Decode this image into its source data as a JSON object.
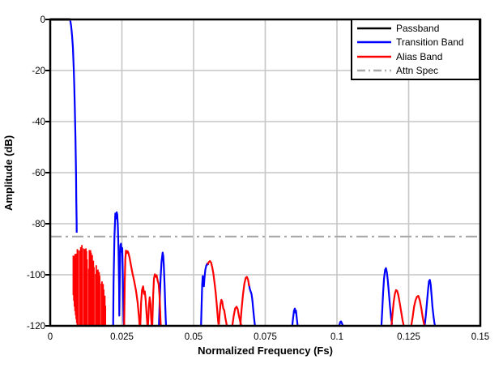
{
  "colors": {
    "background": "#ffffff",
    "grid": "#c6c6c6",
    "axis": "#000000",
    "passband": "#000000",
    "transition": "#0000ff",
    "alias": "#ff0000",
    "attn": "#a8a8a8"
  },
  "legend": {
    "items": [
      {
        "label": "Passband",
        "color": "#000000",
        "dash": "solid"
      },
      {
        "label": "Transition Band",
        "color": "#0000ff",
        "dash": "solid"
      },
      {
        "label": "Alias Band",
        "color": "#ff0000",
        "dash": "solid"
      },
      {
        "label": "Attn Spec",
        "color": "#a8a8a8",
        "dash": "dashdot"
      }
    ]
  },
  "chart_data": {
    "type": "line",
    "title": "",
    "xlabel": "Normalized Frequency (Fs)",
    "ylabel": "Amplitude (dB)",
    "xlim": [
      0,
      0.15
    ],
    "ylim": [
      -120,
      0
    ],
    "grid": true,
    "legend_position": "top-right",
    "attn_spec_db": -85,
    "xticks": [
      0,
      0.025,
      0.05,
      0.075,
      0.1,
      0.125,
      0.15
    ],
    "xtick_labels": [
      "0",
      "0.025",
      "0.05",
      "0.075",
      "0.1",
      "0.125",
      "0.15"
    ],
    "yticks": [
      0,
      -20,
      -40,
      -60,
      -80,
      -100,
      -120
    ],
    "ytick_labels": [
      "0",
      "-20",
      "-40",
      "-60",
      "-80",
      "-100",
      "-120"
    ],
    "series": [
      {
        "name": "attn-spec",
        "color": "#a8a8a8",
        "width": 2.2,
        "dash": "14 5 3 5",
        "points": [
          [
            0,
            -85
          ],
          [
            0.15,
            -85
          ]
        ]
      },
      {
        "name": "passband",
        "color": "#000000",
        "width": 3,
        "points": [
          [
            0,
            0
          ],
          [
            0.007,
            0
          ]
        ]
      },
      {
        "name": "transition-band",
        "color": "#0000ff",
        "width": 2.2,
        "points": [
          [
            0.007,
            -0.5
          ],
          [
            0.0073,
            -2.5
          ],
          [
            0.0076,
            -6
          ],
          [
            0.0079,
            -11
          ],
          [
            0.0082,
            -19
          ],
          [
            0.0084,
            -26
          ],
          [
            0.0086,
            -35
          ],
          [
            0.0088,
            -47
          ],
          [
            0.009,
            -61
          ],
          [
            0.0091,
            -71
          ],
          [
            0.0092,
            -79
          ],
          [
            0.00925,
            -83.5
          ]
        ]
      },
      {
        "name": "alias-blue-spike-1",
        "color": "#0000ff",
        "width": 2.2,
        "points": [
          [
            0.02195,
            -120
          ],
          [
            0.0221,
            -103
          ],
          [
            0.0224,
            -85
          ],
          [
            0.0227,
            -76
          ],
          [
            0.0229,
            -78
          ],
          [
            0.0232,
            -75.5
          ],
          [
            0.0234,
            -76.5
          ],
          [
            0.0236,
            -81
          ],
          [
            0.0238,
            -90
          ],
          [
            0.024,
            -104
          ],
          [
            0.0241,
            -116
          ],
          [
            0.0243,
            -98
          ],
          [
            0.0245,
            -88.5
          ],
          [
            0.0247,
            -87.8
          ],
          [
            0.0249,
            -91
          ],
          [
            0.0251,
            -89.5
          ],
          [
            0.0252,
            -93
          ],
          [
            0.0254,
            -105
          ],
          [
            0.0256,
            -118
          ],
          [
            0.0257,
            -120
          ]
        ]
      },
      {
        "name": "alias-blue-spike-2",
        "color": "#0000ff",
        "width": 2.2,
        "points": [
          [
            0.0379,
            -120
          ],
          [
            0.0382,
            -110
          ],
          [
            0.0385,
            -101
          ],
          [
            0.0388,
            -95
          ],
          [
            0.0392,
            -91.3
          ],
          [
            0.0394,
            -92.5
          ],
          [
            0.0396,
            -96
          ],
          [
            0.0399,
            -104
          ],
          [
            0.0401,
            -112
          ],
          [
            0.0403,
            -118
          ],
          [
            0.0404,
            -120
          ]
        ]
      },
      {
        "name": "alias-blue-spike-3",
        "color": "#0000ff",
        "width": 2.2,
        "points": [
          [
            0.0526,
            -120
          ],
          [
            0.0528,
            -112
          ],
          [
            0.053,
            -104
          ],
          [
            0.0532,
            -100.5
          ],
          [
            0.0534,
            -103
          ],
          [
            0.0536,
            -104.5
          ],
          [
            0.0538,
            -101
          ],
          [
            0.0541,
            -98
          ],
          [
            0.0544,
            -96.5
          ],
          [
            0.0548,
            -95.6
          ],
          [
            0.0552,
            -96.2
          ]
        ]
      },
      {
        "name": "alias-blue-edge-1",
        "color": "#0000ff",
        "width": 2.2,
        "points": [
          [
            0.0692,
            -103.5
          ],
          [
            0.0696,
            -105.5
          ],
          [
            0.0699,
            -106.5
          ],
          [
            0.0702,
            -107.5
          ],
          [
            0.0705,
            -110
          ],
          [
            0.0708,
            -113.5
          ],
          [
            0.0711,
            -117
          ],
          [
            0.0714,
            -120
          ]
        ]
      },
      {
        "name": "alias-blue-spike-4",
        "color": "#0000ff",
        "width": 2.2,
        "points": [
          [
            0.0844,
            -120
          ],
          [
            0.0847,
            -117
          ],
          [
            0.085,
            -114.2
          ],
          [
            0.0853,
            -113.2
          ],
          [
            0.0855,
            -114.8
          ],
          [
            0.0857,
            -114
          ],
          [
            0.086,
            -117
          ],
          [
            0.0863,
            -120
          ]
        ]
      },
      {
        "name": "alias-blue-nub",
        "color": "#0000ff",
        "width": 2.2,
        "points": [
          [
            0.1008,
            -120
          ],
          [
            0.1011,
            -118.6
          ],
          [
            0.1014,
            -118.3
          ],
          [
            0.1018,
            -119.2
          ],
          [
            0.1021,
            -120
          ]
        ]
      },
      {
        "name": "alias-blue-spike-5",
        "color": "#0000ff",
        "width": 2.2,
        "points": [
          [
            0.1155,
            -120
          ],
          [
            0.1158,
            -114
          ],
          [
            0.1161,
            -107
          ],
          [
            0.1164,
            -101.5
          ],
          [
            0.1168,
            -98
          ],
          [
            0.1171,
            -97.4
          ],
          [
            0.1174,
            -99
          ],
          [
            0.1177,
            -102
          ],
          [
            0.1181,
            -107
          ],
          [
            0.1185,
            -112.5
          ],
          [
            0.1189,
            -117
          ],
          [
            0.1192,
            -119.5
          ]
        ]
      },
      {
        "name": "alias-blue-spike-6",
        "color": "#0000ff",
        "width": 2.2,
        "points": [
          [
            0.1306,
            -120
          ],
          [
            0.131,
            -116
          ],
          [
            0.1314,
            -110.5
          ],
          [
            0.1318,
            -105.5
          ],
          [
            0.1321,
            -102.5
          ],
          [
            0.1324,
            -102
          ],
          [
            0.1327,
            -104
          ],
          [
            0.133,
            -108
          ],
          [
            0.1333,
            -112.5
          ],
          [
            0.1337,
            -116.5
          ],
          [
            0.134,
            -119
          ],
          [
            0.1342,
            -120
          ]
        ]
      },
      {
        "name": "alias-dense-band",
        "type": "noise_band",
        "color": "#ff0000",
        "width": 1.8,
        "x_start": 0.00805,
        "x_end": 0.0193,
        "step": 0.0002,
        "top_envelope": [
          [
            0.00805,
            -92.5
          ],
          [
            0.0085,
            -91.5
          ],
          [
            0.009,
            -91
          ],
          [
            0.0095,
            -89.5
          ],
          [
            0.01,
            -88.4
          ],
          [
            0.0106,
            -88.8
          ],
          [
            0.0111,
            -88.3
          ],
          [
            0.0116,
            -89.2
          ],
          [
            0.0121,
            -89
          ],
          [
            0.0127,
            -89.6
          ],
          [
            0.0132,
            -89.2
          ],
          [
            0.0137,
            -90
          ],
          [
            0.0142,
            -90.5
          ],
          [
            0.0146,
            -91.5
          ],
          [
            0.015,
            -93.5
          ],
          [
            0.0155,
            -94.5
          ],
          [
            0.016,
            -95.5
          ],
          [
            0.0164,
            -96.8
          ],
          [
            0.0168,
            -98
          ],
          [
            0.0172,
            -99.5
          ],
          [
            0.0176,
            -100.8
          ],
          [
            0.018,
            -101.5
          ],
          [
            0.0184,
            -103
          ],
          [
            0.0188,
            -105.5
          ],
          [
            0.0191,
            -108
          ],
          [
            0.0193,
            -111
          ]
        ],
        "bottom_envelope": [
          [
            0.00805,
            -108
          ],
          [
            0.0085,
            -113
          ],
          [
            0.009,
            -117
          ],
          [
            0.0094,
            -120
          ],
          [
            0.0193,
            -120
          ]
        ],
        "gaps": [
          0.01,
          0.0113,
          0.0131,
          0.0156,
          0.0176
        ]
      },
      {
        "name": "alias-red-arch-1",
        "color": "#ff0000",
        "width": 2.2,
        "points": [
          [
            0.0258,
            -120
          ],
          [
            0.026,
            -103
          ],
          [
            0.0262,
            -94
          ],
          [
            0.0264,
            -90.5
          ],
          [
            0.0267,
            -91.5
          ],
          [
            0.027,
            -90.8
          ],
          [
            0.0273,
            -91.5
          ],
          [
            0.0277,
            -93.5
          ],
          [
            0.0282,
            -96.5
          ],
          [
            0.0287,
            -99.5
          ],
          [
            0.0293,
            -102.5
          ],
          [
            0.0299,
            -106
          ],
          [
            0.0305,
            -111
          ],
          [
            0.031,
            -117
          ],
          [
            0.0312,
            -120
          ]
        ]
      },
      {
        "name": "alias-red-bump-1",
        "color": "#ff0000",
        "width": 2.2,
        "points": [
          [
            0.0314,
            -120
          ],
          [
            0.0317,
            -111
          ],
          [
            0.032,
            -106
          ],
          [
            0.0324,
            -104.5
          ],
          [
            0.0327,
            -107.5
          ],
          [
            0.033,
            -106.5
          ],
          [
            0.0333,
            -110
          ],
          [
            0.0336,
            -115
          ],
          [
            0.0339,
            -120
          ]
        ]
      },
      {
        "name": "alias-red-bump-2",
        "color": "#ff0000",
        "width": 2.2,
        "points": [
          [
            0.0341,
            -120
          ],
          [
            0.0344,
            -112.5
          ],
          [
            0.0347,
            -108.8
          ],
          [
            0.035,
            -111.5
          ],
          [
            0.0352,
            -117
          ],
          [
            0.0354,
            -120
          ]
        ]
      },
      {
        "name": "alias-red-arch-2",
        "color": "#ff0000",
        "width": 2.2,
        "points": [
          [
            0.0356,
            -120
          ],
          [
            0.0359,
            -108
          ],
          [
            0.0362,
            -101.5
          ],
          [
            0.0365,
            -99.8
          ],
          [
            0.0368,
            -100.8
          ],
          [
            0.0371,
            -100.2
          ],
          [
            0.0375,
            -102.5
          ],
          [
            0.0378,
            -103.5
          ],
          [
            0.0381,
            -108
          ],
          [
            0.0383,
            -113
          ],
          [
            0.0385,
            -119
          ],
          [
            0.0386,
            -120
          ]
        ]
      },
      {
        "name": "alias-red-arch-3",
        "color": "#ff0000",
        "width": 2.2,
        "points": [
          [
            0.0549,
            -96
          ],
          [
            0.0553,
            -95
          ],
          [
            0.0557,
            -94.6
          ],
          [
            0.0561,
            -95.2
          ],
          [
            0.0565,
            -97
          ],
          [
            0.0569,
            -99.5
          ],
          [
            0.0573,
            -103
          ],
          [
            0.0577,
            -107
          ],
          [
            0.0581,
            -112
          ],
          [
            0.0585,
            -117.5
          ],
          [
            0.0587,
            -119.5
          ]
        ]
      },
      {
        "name": "alias-red-bump-3",
        "color": "#ff0000",
        "width": 2.2,
        "points": [
          [
            0.0588,
            -119.5
          ],
          [
            0.0591,
            -115
          ],
          [
            0.0594,
            -111.5
          ],
          [
            0.0597,
            -109.8
          ],
          [
            0.06,
            -110.5
          ],
          [
            0.0603,
            -113
          ],
          [
            0.0607,
            -114
          ],
          [
            0.0611,
            -117
          ],
          [
            0.0616,
            -120
          ]
        ]
      },
      {
        "name": "alias-red-bump-4",
        "color": "#ff0000",
        "width": 2.2,
        "points": [
          [
            0.0635,
            -120
          ],
          [
            0.064,
            -116
          ],
          [
            0.0645,
            -113.2
          ],
          [
            0.065,
            -112.5
          ],
          [
            0.0654,
            -113.5
          ],
          [
            0.0658,
            -116
          ],
          [
            0.0663,
            -118.5
          ],
          [
            0.0667,
            -120
          ]
        ]
      },
      {
        "name": "alias-red-arch-4",
        "color": "#ff0000",
        "width": 2.2,
        "points": [
          [
            0.0663,
            -120
          ],
          [
            0.0667,
            -114
          ],
          [
            0.0672,
            -108
          ],
          [
            0.0677,
            -103.5
          ],
          [
            0.0682,
            -101.2
          ],
          [
            0.0686,
            -100.8
          ],
          [
            0.069,
            -102
          ],
          [
            0.0694,
            -104.5
          ]
        ]
      },
      {
        "name": "alias-red-arch-5",
        "color": "#ff0000",
        "width": 2.2,
        "points": [
          [
            0.119,
            -120
          ],
          [
            0.1194,
            -115
          ],
          [
            0.1198,
            -110.5
          ],
          [
            0.1202,
            -107.5
          ],
          [
            0.1206,
            -106
          ],
          [
            0.121,
            -106.3
          ],
          [
            0.1214,
            -108
          ],
          [
            0.1219,
            -111
          ],
          [
            0.1224,
            -114.5
          ],
          [
            0.1229,
            -118
          ],
          [
            0.1233,
            -120
          ]
        ]
      },
      {
        "name": "alias-red-arch-6",
        "color": "#ff0000",
        "width": 2.2,
        "points": [
          [
            0.1259,
            -120
          ],
          [
            0.1264,
            -116.5
          ],
          [
            0.1269,
            -112.5
          ],
          [
            0.1274,
            -110
          ],
          [
            0.1279,
            -108.6
          ],
          [
            0.1284,
            -108.3
          ],
          [
            0.1289,
            -110
          ],
          [
            0.1294,
            -113
          ],
          [
            0.1299,
            -116.5
          ],
          [
            0.1304,
            -119.5
          ],
          [
            0.1306,
            -120
          ]
        ]
      }
    ]
  }
}
